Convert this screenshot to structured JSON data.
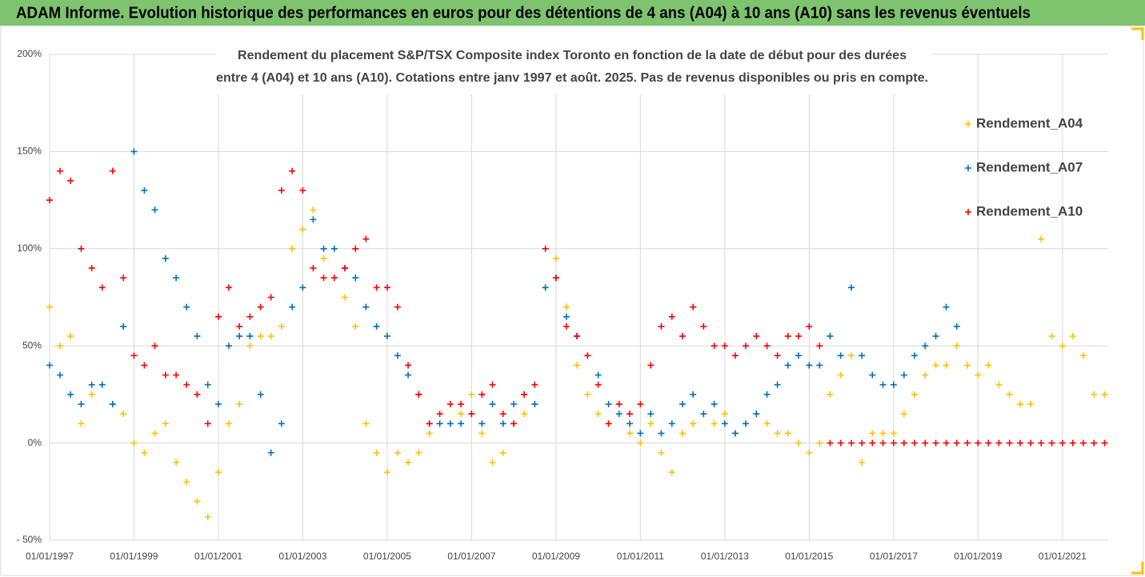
{
  "chart_data": {
    "type": "scatter",
    "title": "ADAM Informe. Evolution historique des performances en euros pour des détentions de 4 ans (A04) à 10 ans (A10) sans les revenus éventuels",
    "subtitle": [
      "Rendement du placement S&P/TSX Composite index Toronto en fonction de la date de début pour des durées",
      "entre 4 (A04) et 10 ans (A10). Cotations entre janv 1997 et août. 2025. Pas de revenus disponibles ou pris en compte."
    ],
    "x": [
      "01/01/1997",
      "01/04/1997",
      "01/07/1997",
      "01/10/1997",
      "01/01/1998",
      "01/04/1998",
      "01/07/1998",
      "01/10/1998",
      "01/01/1999",
      "01/04/1999",
      "01/07/1999",
      "01/10/1999",
      "01/01/2000",
      "01/04/2000",
      "01/07/2000",
      "01/10/2000",
      "01/01/2001",
      "01/04/2001",
      "01/07/2001",
      "01/10/2001",
      "01/01/2002",
      "01/04/2002",
      "01/07/2002",
      "01/10/2002",
      "01/01/2003",
      "01/04/2003",
      "01/07/2003",
      "01/10/2003",
      "01/01/2004",
      "01/04/2004",
      "01/07/2004",
      "01/10/2004",
      "01/01/2005",
      "01/04/2005",
      "01/07/2005",
      "01/10/2005",
      "01/01/2006",
      "01/04/2006",
      "01/07/2006",
      "01/10/2006",
      "01/01/2007",
      "01/04/2007",
      "01/07/2007",
      "01/10/2007",
      "01/01/2008",
      "01/04/2008",
      "01/07/2008",
      "01/10/2008",
      "01/01/2009",
      "01/04/2009",
      "01/07/2009",
      "01/10/2009",
      "01/01/2010",
      "01/04/2010",
      "01/07/2010",
      "01/10/2010",
      "01/01/2011",
      "01/04/2011",
      "01/07/2011",
      "01/10/2011",
      "01/01/2012",
      "01/04/2012",
      "01/07/2012",
      "01/10/2012",
      "01/01/2013",
      "01/04/2013",
      "01/07/2013",
      "01/10/2013",
      "01/01/2014",
      "01/04/2014",
      "01/07/2014",
      "01/10/2014",
      "01/01/2015",
      "01/04/2015",
      "01/07/2015",
      "01/10/2015",
      "01/01/2016",
      "01/04/2016",
      "01/07/2016",
      "01/10/2016",
      "01/01/2017",
      "01/04/2017",
      "01/07/2017",
      "01/10/2017",
      "01/01/2018",
      "01/04/2018",
      "01/07/2018",
      "01/10/2018",
      "01/01/2019",
      "01/04/2019",
      "01/07/2019",
      "01/10/2019",
      "01/01/2020",
      "01/04/2020",
      "01/07/2020",
      "01/10/2020",
      "01/01/2021",
      "01/04/2021",
      "01/07/2021",
      "01/10/2021",
      "01/01/2022"
    ],
    "series": [
      {
        "name": "Rendement_A04",
        "color": "#ffc000",
        "values": [
          70,
          50,
          55,
          10,
          25,
          30,
          20,
          15,
          0,
          -5,
          5,
          10,
          -10,
          -20,
          -30,
          -38,
          -15,
          10,
          20,
          50,
          55,
          55,
          60,
          100,
          110,
          120,
          95,
          85,
          75,
          60,
          10,
          -5,
          -15,
          -5,
          -10,
          -5,
          5,
          10,
          10,
          15,
          25,
          5,
          -10,
          -5,
          10,
          15,
          20,
          80,
          95,
          70,
          40,
          25,
          15,
          10,
          20,
          5,
          0,
          10,
          -5,
          -15,
          5,
          10,
          15,
          10,
          15,
          5,
          10,
          15,
          10,
          5,
          5,
          0,
          -5,
          0,
          25,
          35,
          45,
          -10,
          5,
          5,
          5,
          15,
          25,
          35,
          40,
          40,
          50,
          40,
          35,
          40,
          30,
          25,
          20,
          20,
          105,
          55,
          50,
          55,
          45,
          25,
          25
        ]
      },
      {
        "name": "Rendement_A07",
        "color": "#0070c0",
        "values": [
          40,
          35,
          25,
          20,
          30,
          30,
          20,
          60,
          150,
          130,
          120,
          95,
          85,
          70,
          55,
          30,
          20,
          50,
          55,
          55,
          25,
          -5,
          10,
          70,
          80,
          115,
          100,
          100,
          90,
          85,
          70,
          60,
          55,
          45,
          35,
          25,
          10,
          10,
          10,
          10,
          15,
          10,
          20,
          10,
          20,
          25,
          20,
          80,
          85,
          65,
          55,
          45,
          35,
          20,
          15,
          10,
          5,
          15,
          5,
          10,
          20,
          25,
          15,
          20,
          10,
          5,
          10,
          15,
          25,
          30,
          40,
          45,
          40,
          40,
          55,
          45,
          80,
          45,
          35,
          30,
          30,
          35,
          45,
          50,
          55,
          70,
          60,
          null,
          null,
          null,
          null,
          null,
          null,
          null,
          null,
          null,
          null,
          null,
          null,
          null,
          null
        ]
      },
      {
        "name": "Rendement_A10",
        "color": "#ff0000",
        "values": [
          125,
          140,
          135,
          100,
          90,
          80,
          140,
          85,
          45,
          40,
          50,
          35,
          35,
          30,
          25,
          10,
          65,
          80,
          60,
          65,
          70,
          75,
          130,
          140,
          130,
          90,
          85,
          85,
          90,
          100,
          105,
          80,
          80,
          70,
          40,
          25,
          10,
          15,
          20,
          20,
          15,
          25,
          30,
          15,
          10,
          25,
          30,
          100,
          85,
          60,
          55,
          45,
          30,
          10,
          20,
          15,
          20,
          40,
          60,
          65,
          55,
          70,
          60,
          50,
          50,
          45,
          50,
          55,
          50,
          45,
          55,
          55,
          60,
          50,
          0,
          0,
          0,
          0,
          0,
          0,
          0,
          0,
          0,
          0,
          0,
          0,
          0,
          0,
          0,
          0,
          0,
          0,
          0,
          0,
          0,
          0,
          0,
          0,
          0,
          0,
          0
        ]
      }
    ],
    "xlim": [
      "01/01/1997",
      "01/02/2022"
    ],
    "xticks": [
      "01/01/1997",
      "01/01/1999",
      "01/01/2001",
      "01/01/2003",
      "01/01/2005",
      "01/01/2007",
      "01/01/2009",
      "01/01/2011",
      "01/01/2013",
      "01/01/2015",
      "01/01/2017",
      "01/01/2019",
      "01/01/2021"
    ],
    "ylim": [
      -50,
      200
    ],
    "yticks": [
      {
        "value": -50,
        "label": "- 50%"
      },
      {
        "value": 0,
        "label": "0%"
      },
      {
        "value": 50,
        "label": "50%"
      },
      {
        "value": 100,
        "label": "100%"
      },
      {
        "value": 150,
        "label": "150%"
      },
      {
        "value": 200,
        "label": "200%"
      }
    ],
    "grid": true,
    "legend": "right"
  }
}
